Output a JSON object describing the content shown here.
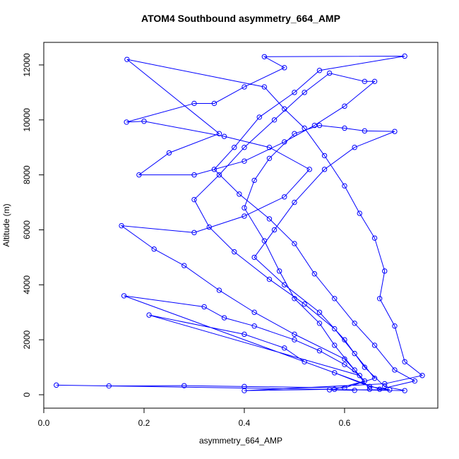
{
  "chart_data": {
    "type": "line",
    "title": "ATOM4 Southbound asymmetry_664_AMP",
    "x_label": "asymmetry_664_AMP",
    "y_label": "Altitude (m)",
    "xlim": [
      0.0,
      0.786
    ],
    "ylim": [
      -488,
      12821
    ],
    "xticks": [
      {
        "value": 0,
        "label": "0.0"
      },
      0.2,
      0.4,
      0.6
    ],
    "yticks": [
      0,
      2000,
      4000,
      6000,
      8000,
      10000,
      12000
    ],
    "grid": false,
    "x": [
      0.65,
      0.62,
      0.58,
      0.55,
      0.5,
      0.47,
      0.44,
      0.4,
      0.42,
      0.45,
      0.5,
      0.55,
      0.6,
      0.64,
      0.7,
      0.62,
      0.56,
      0.5,
      0.46,
      0.42,
      0.48,
      0.55,
      0.6,
      0.64,
      0.68,
      0.72,
      0.025,
      0.13,
      0.28,
      0.4,
      0.6,
      0.66,
      0.62,
      0.58,
      0.52,
      0.45,
      0.38,
      0.33,
      0.3,
      0.35,
      0.4,
      0.46,
      0.52,
      0.57,
      0.64,
      0.66,
      0.6,
      0.54,
      0.48,
      0.4,
      0.3,
      0.19,
      0.25,
      0.35,
      0.166,
      0.44,
      0.48,
      0.52,
      0.56,
      0.6,
      0.63,
      0.66,
      0.68,
      0.67,
      0.7,
      0.72,
      0.755,
      0.68,
      0.4,
      0.58,
      0.64,
      0.6,
      0.5,
      0.42,
      0.35,
      0.28,
      0.22,
      0.155,
      0.3,
      0.4,
      0.48,
      0.53,
      0.45,
      0.36,
      0.2,
      0.165,
      0.3,
      0.34,
      0.4,
      0.48,
      0.44,
      0.72,
      0.55,
      0.5,
      0.43,
      0.38,
      0.34,
      0.39,
      0.45,
      0.5,
      0.54,
      0.58,
      0.62,
      0.66,
      0.7,
      0.74,
      0.67,
      0.16,
      0.32,
      0.36,
      0.42,
      0.5,
      0.55,
      0.6,
      0.63,
      0.21,
      0.4,
      0.48,
      0.52,
      0.58,
      0.65,
      0.69,
      0.57,
      0.62
    ],
    "series": [
      {
        "color": "#0000ff",
        "values": [
          200,
          900,
          1800,
          2600,
          3500,
          4500,
          5600,
          6800,
          7800,
          8600,
          9500,
          9800,
          9700,
          9600,
          9580,
          9000,
          8200,
          7000,
          6000,
          5000,
          4000,
          3000,
          2000,
          1000,
          300,
          150,
          350,
          320,
          330,
          300,
          250,
          600,
          1500,
          2400,
          3300,
          4200,
          5200,
          6100,
          7100,
          8000,
          9000,
          10000,
          11000,
          11700,
          11400,
          11400,
          10500,
          9800,
          9200,
          8500,
          8000,
          8000,
          8800,
          9500,
          12200,
          11200,
          10400,
          9700,
          8700,
          7600,
          6600,
          5700,
          4500,
          3500,
          2500,
          1200,
          700,
          400,
          150,
          200,
          500,
          1300,
          2200,
          3000,
          3800,
          4700,
          5300,
          6150,
          5900,
          6500,
          7200,
          8200,
          9000,
          9400,
          9950,
          9920,
          10600,
          10600,
          11200,
          11900,
          12300,
          12320,
          11800,
          11000,
          10100,
          9000,
          8200,
          7300,
          6400,
          5500,
          4400,
          3500,
          2600,
          1800,
          900,
          500,
          200,
          3600,
          3200,
          2800,
          2500,
          2000,
          1600,
          1100,
          700,
          2900,
          2200,
          1700,
          1200,
          800,
          300,
          180,
          180,
          160
        ]
      }
    ]
  }
}
